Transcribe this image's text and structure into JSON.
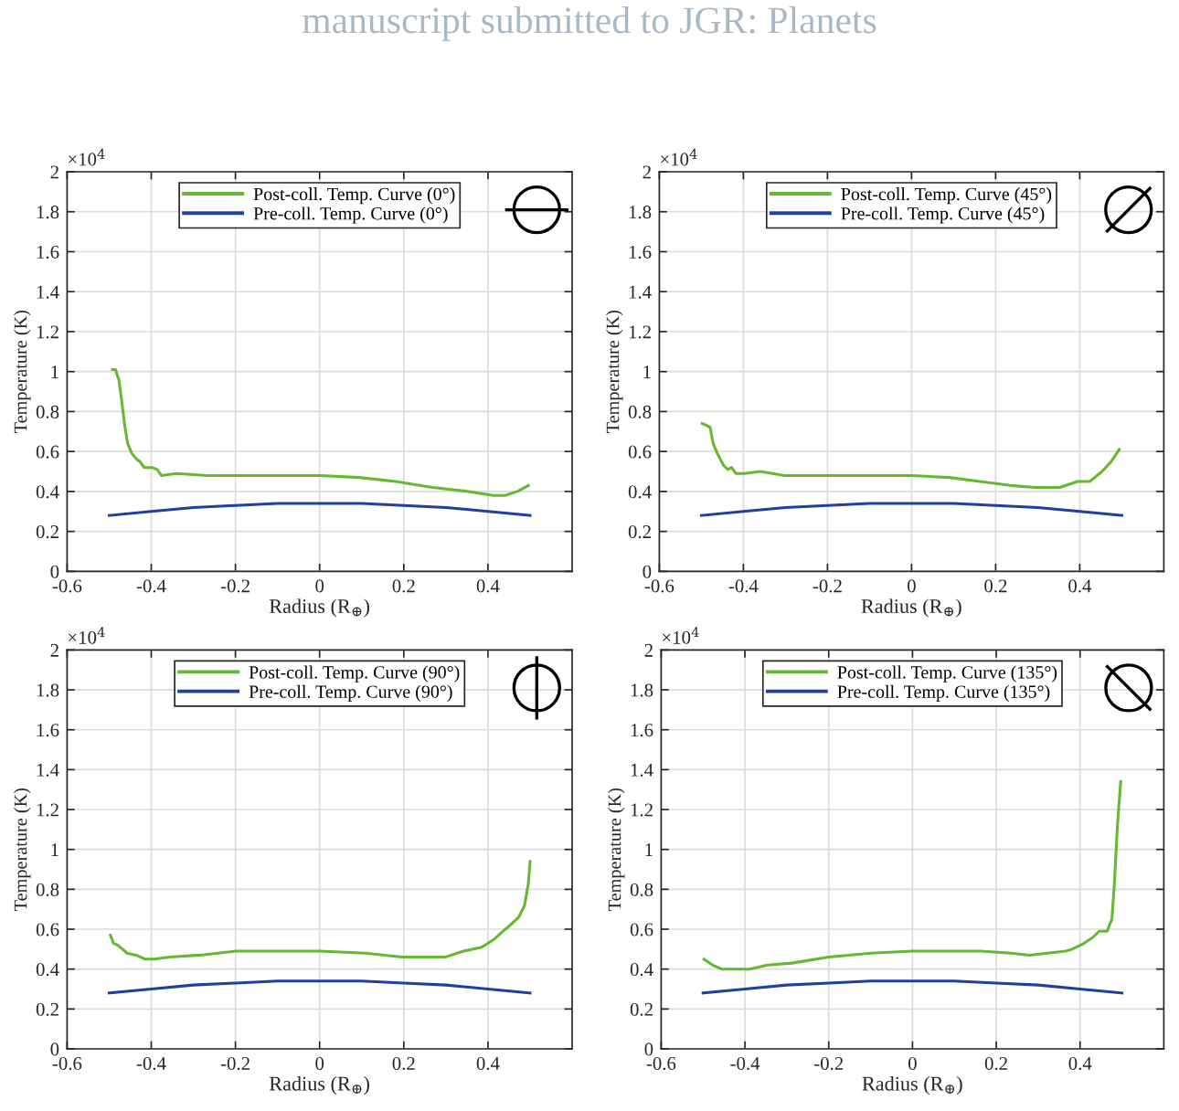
{
  "chart_data": [
    {
      "type": "line",
      "xlabel": "Radius (R$_{⊕}$)",
      "ylabel": "Temperature (K)",
      "annotations": [
        "×10$^{4}$",
        "manuscript submitted to JGR: Planets"
      ],
      "xlim": [
        -0.6,
        0.6
      ],
      "xticks": [
        -0.6,
        -0.4,
        -0.2,
        0,
        0.2,
        0.4
      ],
      "ylim": [
        0,
        2
      ],
      "yticks": [
        0,
        0.2,
        0.4,
        0.6,
        0.8,
        1,
        1.2,
        1.4,
        1.6,
        1.8,
        2
      ],
      "grid": true,
      "legend": "top",
      "series": [
        {
          "name": "Post-coll. Temp. Curve (0°)",
          "color": "#64b832",
          "x": [
            -0.492,
            -0.485,
            -0.477,
            -0.47,
            -0.463,
            -0.456,
            -0.446,
            -0.434,
            -0.427,
            -0.417,
            -0.398,
            -0.386,
            -0.376,
            -0.34,
            -0.268,
            -0.195,
            -0.094,
            0.001,
            0.094,
            0.181,
            0.268,
            0.354,
            0.412,
            0.441,
            0.47,
            0.496
          ],
          "values": [
            1.01,
            1.01,
            0.96,
            0.85,
            0.73,
            0.64,
            0.59,
            0.56,
            0.55,
            0.52,
            0.52,
            0.51,
            0.48,
            0.49,
            0.48,
            0.48,
            0.48,
            0.48,
            0.47,
            0.45,
            0.42,
            0.4,
            0.38,
            0.38,
            0.4,
            0.43
          ]
        },
        {
          "name": "Pre-coll. Temp. Curve (0°)",
          "color": "#2040a0",
          "x": [
            -0.5,
            -0.4,
            -0.3,
            -0.2,
            -0.1,
            0,
            0.1,
            0.2,
            0.3,
            0.4,
            0.5
          ],
          "values": [
            0.28,
            0.3,
            0.32,
            0.33,
            0.34,
            0.34,
            0.34,
            0.33,
            0.32,
            0.3,
            0.28
          ]
        }
      ]
    },
    {
      "type": "line",
      "xlabel": "Radius (R$_{⊕}$)",
      "ylabel": "Temperature (K)",
      "annotations": [
        "×10$^{4}$"
      ],
      "xlim": [
        -0.6,
        0.6
      ],
      "xticks": [
        -0.6,
        -0.4,
        -0.2,
        0,
        0.2,
        0.4
      ],
      "ylim": [
        0,
        2
      ],
      "yticks": [
        0,
        0.2,
        0.4,
        0.6,
        0.8,
        1,
        1.2,
        1.4,
        1.6,
        1.8,
        2
      ],
      "grid": true,
      "legend": "top",
      "series": [
        {
          "name": "Post-coll. Temp. Curve (45°)",
          "color": "#64b832",
          "x": [
            -0.498,
            -0.487,
            -0.479,
            -0.472,
            -0.462,
            -0.447,
            -0.437,
            -0.428,
            -0.418,
            -0.397,
            -0.36,
            -0.302,
            -0.2,
            -0.099,
            0,
            0.09,
            0.163,
            0.235,
            0.293,
            0.352,
            0.395,
            0.424,
            0.453,
            0.475,
            0.494
          ],
          "values": [
            0.74,
            0.73,
            0.72,
            0.64,
            0.59,
            0.53,
            0.51,
            0.52,
            0.49,
            0.49,
            0.5,
            0.48,
            0.48,
            0.48,
            0.48,
            0.47,
            0.45,
            0.43,
            0.42,
            0.42,
            0.45,
            0.45,
            0.5,
            0.55,
            0.61
          ]
        },
        {
          "name": "Pre-coll. Temp. Curve (45°)",
          "color": "#2040a0",
          "x": [
            -0.5,
            -0.4,
            -0.3,
            -0.2,
            -0.1,
            0,
            0.1,
            0.2,
            0.3,
            0.4,
            0.5
          ],
          "values": [
            0.28,
            0.3,
            0.32,
            0.33,
            0.34,
            0.34,
            0.34,
            0.33,
            0.32,
            0.3,
            0.28
          ]
        }
      ]
    },
    {
      "type": "line",
      "xlabel": "Radius (R$_{⊕}$)",
      "ylabel": "Temperature (K)",
      "annotations": [
        "×10$^{4}$"
      ],
      "xlim": [
        -0.6,
        0.6
      ],
      "xticks": [
        -0.6,
        -0.4,
        -0.2,
        0,
        0.2,
        0.4
      ],
      "ylim": [
        0,
        2
      ],
      "yticks": [
        0,
        0.2,
        0.4,
        0.6,
        0.8,
        1,
        1.2,
        1.4,
        1.6,
        1.8,
        2
      ],
      "grid": true,
      "legend": "top",
      "series": [
        {
          "name": "Post-coll. Temp. Curve (90°)",
          "color": "#64b832",
          "x": [
            -0.497,
            -0.49,
            -0.48,
            -0.468,
            -0.458,
            -0.436,
            -0.415,
            -0.393,
            -0.356,
            -0.284,
            -0.199,
            -0.109,
            0,
            0.109,
            0.196,
            0.255,
            0.298,
            0.342,
            0.385,
            0.415,
            0.436,
            0.458,
            0.473,
            0.487,
            0.496,
            0.5
          ],
          "values": [
            0.57,
            0.53,
            0.52,
            0.5,
            0.48,
            0.47,
            0.45,
            0.45,
            0.46,
            0.47,
            0.49,
            0.49,
            0.49,
            0.48,
            0.46,
            0.46,
            0.46,
            0.49,
            0.51,
            0.55,
            0.59,
            0.63,
            0.66,
            0.72,
            0.83,
            0.94
          ]
        },
        {
          "name": "Pre-coll. Temp. Curve (90°)",
          "color": "#2040a0",
          "x": [
            -0.5,
            -0.4,
            -0.3,
            -0.2,
            -0.1,
            0,
            0.1,
            0.2,
            0.3,
            0.4,
            0.5
          ],
          "values": [
            0.28,
            0.3,
            0.32,
            0.33,
            0.34,
            0.34,
            0.34,
            0.33,
            0.32,
            0.3,
            0.28
          ]
        }
      ]
    },
    {
      "type": "line",
      "xlabel": "Radius (R$_{⊕}$)",
      "ylabel": "Temperature (K)",
      "annotations": [
        "×10$^{4}$"
      ],
      "xlim": [
        -0.6,
        0.6
      ],
      "xticks": [
        -0.6,
        -0.4,
        -0.2,
        0,
        0.2,
        0.4
      ],
      "ylim": [
        0,
        2
      ],
      "yticks": [
        0,
        0.2,
        0.4,
        0.6,
        0.8,
        1,
        1.2,
        1.4,
        1.6,
        1.8,
        2
      ],
      "grid": true,
      "legend": "top",
      "series": [
        {
          "name": "Post-coll. Temp. Curve (135°)",
          "color": "#64b832",
          "x": [
            -0.498,
            -0.477,
            -0.455,
            -0.418,
            -0.389,
            -0.346,
            -0.288,
            -0.2,
            -0.099,
            0,
            0.09,
            0.163,
            0.235,
            0.279,
            0.322,
            0.366,
            0.381,
            0.41,
            0.431,
            0.446,
            0.456,
            0.465,
            0.47,
            0.476,
            0.482,
            0.489,
            0.497
          ],
          "values": [
            0.45,
            0.42,
            0.4,
            0.4,
            0.4,
            0.42,
            0.43,
            0.46,
            0.48,
            0.49,
            0.49,
            0.49,
            0.48,
            0.47,
            0.48,
            0.49,
            0.5,
            0.53,
            0.56,
            0.59,
            0.59,
            0.59,
            0.62,
            0.65,
            0.83,
            1.11,
            1.34
          ]
        },
        {
          "name": "Pre-coll. Temp. Curve (135°)",
          "color": "#2040a0",
          "x": [
            -0.5,
            -0.4,
            -0.3,
            -0.2,
            -0.1,
            0,
            0.1,
            0.2,
            0.3,
            0.4,
            0.5
          ],
          "values": [
            0.28,
            0.3,
            0.32,
            0.33,
            0.34,
            0.34,
            0.34,
            0.33,
            0.32,
            0.3,
            0.28
          ]
        }
      ]
    }
  ]
}
